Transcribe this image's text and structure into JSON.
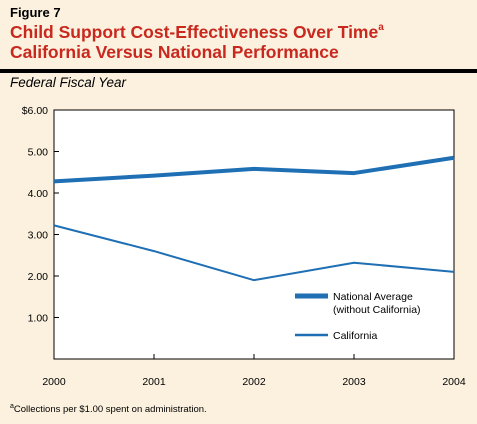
{
  "figure": {
    "label": "Figure 7",
    "title_line1": "Child Support Cost-Effectiveness Over Time",
    "title_line1_sup": "a",
    "title_line2": "California Versus National Performance",
    "subtitle": "Federal Fiscal Year"
  },
  "colors": {
    "background": "#fbf1de",
    "plot_background": "#ffffff",
    "title": "#c8281e",
    "national_line": "#1f6fb4",
    "california_line": "#1f6fb4"
  },
  "chart_data": {
    "type": "line",
    "x": [
      "2000",
      "2001",
      "2002",
      "2003",
      "2004"
    ],
    "ylim": [
      0,
      6
    ],
    "y_ticks": [
      {
        "value": 1,
        "label": "1.00"
      },
      {
        "value": 2,
        "label": "2.00"
      },
      {
        "value": 3,
        "label": "3.00"
      },
      {
        "value": 4,
        "label": "4.00"
      },
      {
        "value": 5,
        "label": "5.00"
      },
      {
        "value": 6,
        "label": "$6.00"
      }
    ],
    "series": [
      {
        "name": "National Average (without California)",
        "values": [
          4.28,
          4.42,
          4.58,
          4.48,
          4.85
        ],
        "stroke": "thick"
      },
      {
        "name": "California",
        "values": [
          3.22,
          2.6,
          1.9,
          2.32,
          2.1
        ],
        "stroke": "thin"
      }
    ],
    "legend": {
      "position": "lower-right",
      "entries": [
        {
          "line1": "National Average",
          "line2": "(without California)"
        },
        {
          "line1": "California",
          "line2": ""
        }
      ]
    },
    "grid": false
  },
  "footnote": {
    "marker": "a",
    "text": "Collections per $1.00 spent on administration."
  }
}
